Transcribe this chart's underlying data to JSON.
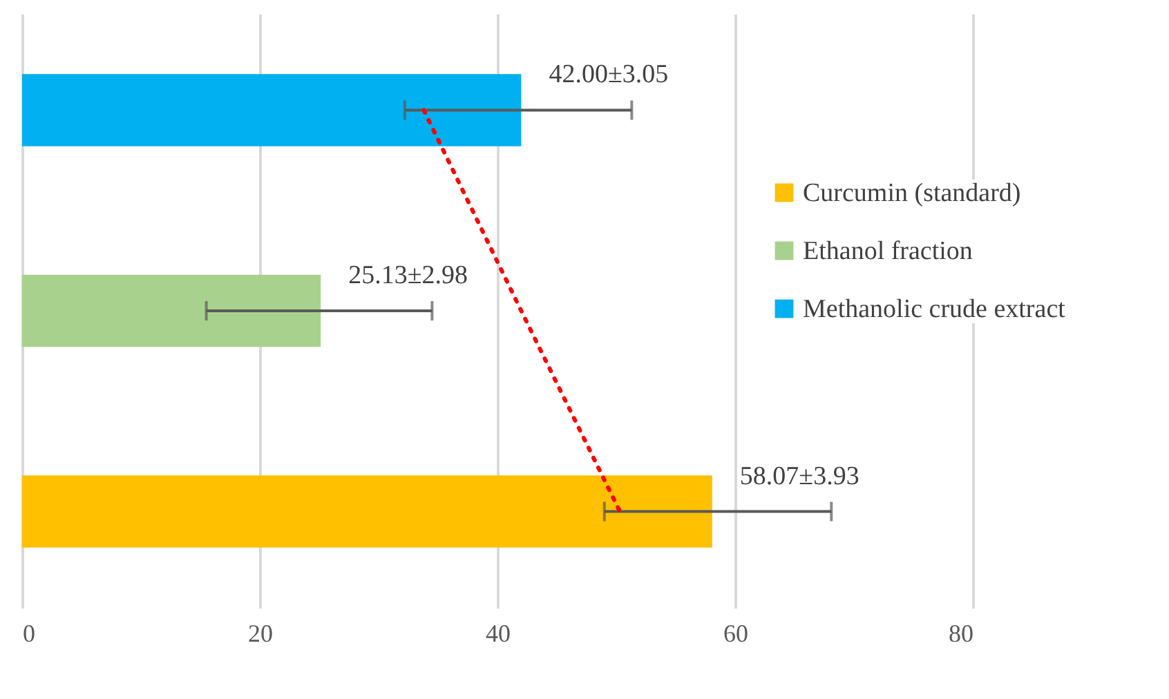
{
  "chart_data": {
    "type": "bar",
    "orientation": "horizontal",
    "categories": [
      null,
      null,
      null
    ],
    "series": [
      {
        "name": "Curcumin (standard)",
        "color": "#ffc000",
        "values": [
          null,
          null,
          58.07
        ],
        "errors": [
          null,
          null,
          [
            49.0,
            68.1
          ]
        ],
        "value_labels": [
          null,
          null,
          "58.07±3.93"
        ]
      },
      {
        "name": "Ethanol fraction",
        "color": "#a9d18e",
        "values": [
          null,
          25.13,
          null
        ],
        "errors": [
          null,
          [
            15.5,
            34.5
          ],
          null
        ],
        "value_labels": [
          null,
          "25.13±2.98",
          null
        ]
      },
      {
        "name": "Methanolic crude extract",
        "color": "#00b0f0",
        "values": [
          42.0,
          null,
          null
        ],
        "errors": [
          [
            32.2,
            51.3
          ],
          null,
          null
        ],
        "value_labels": [
          "42.00±3.05",
          null,
          null
        ]
      },
      {
        "type": "line",
        "color": "#ff0000",
        "line_style": "dotted",
        "marker": "none",
        "values": [
          33.8,
          42.0,
          50.3
        ]
      }
    ],
    "xlim": [
      0,
      80
    ],
    "xticks": [
      0,
      20,
      40,
      60,
      80
    ],
    "grid": "x",
    "legend": "right"
  }
}
